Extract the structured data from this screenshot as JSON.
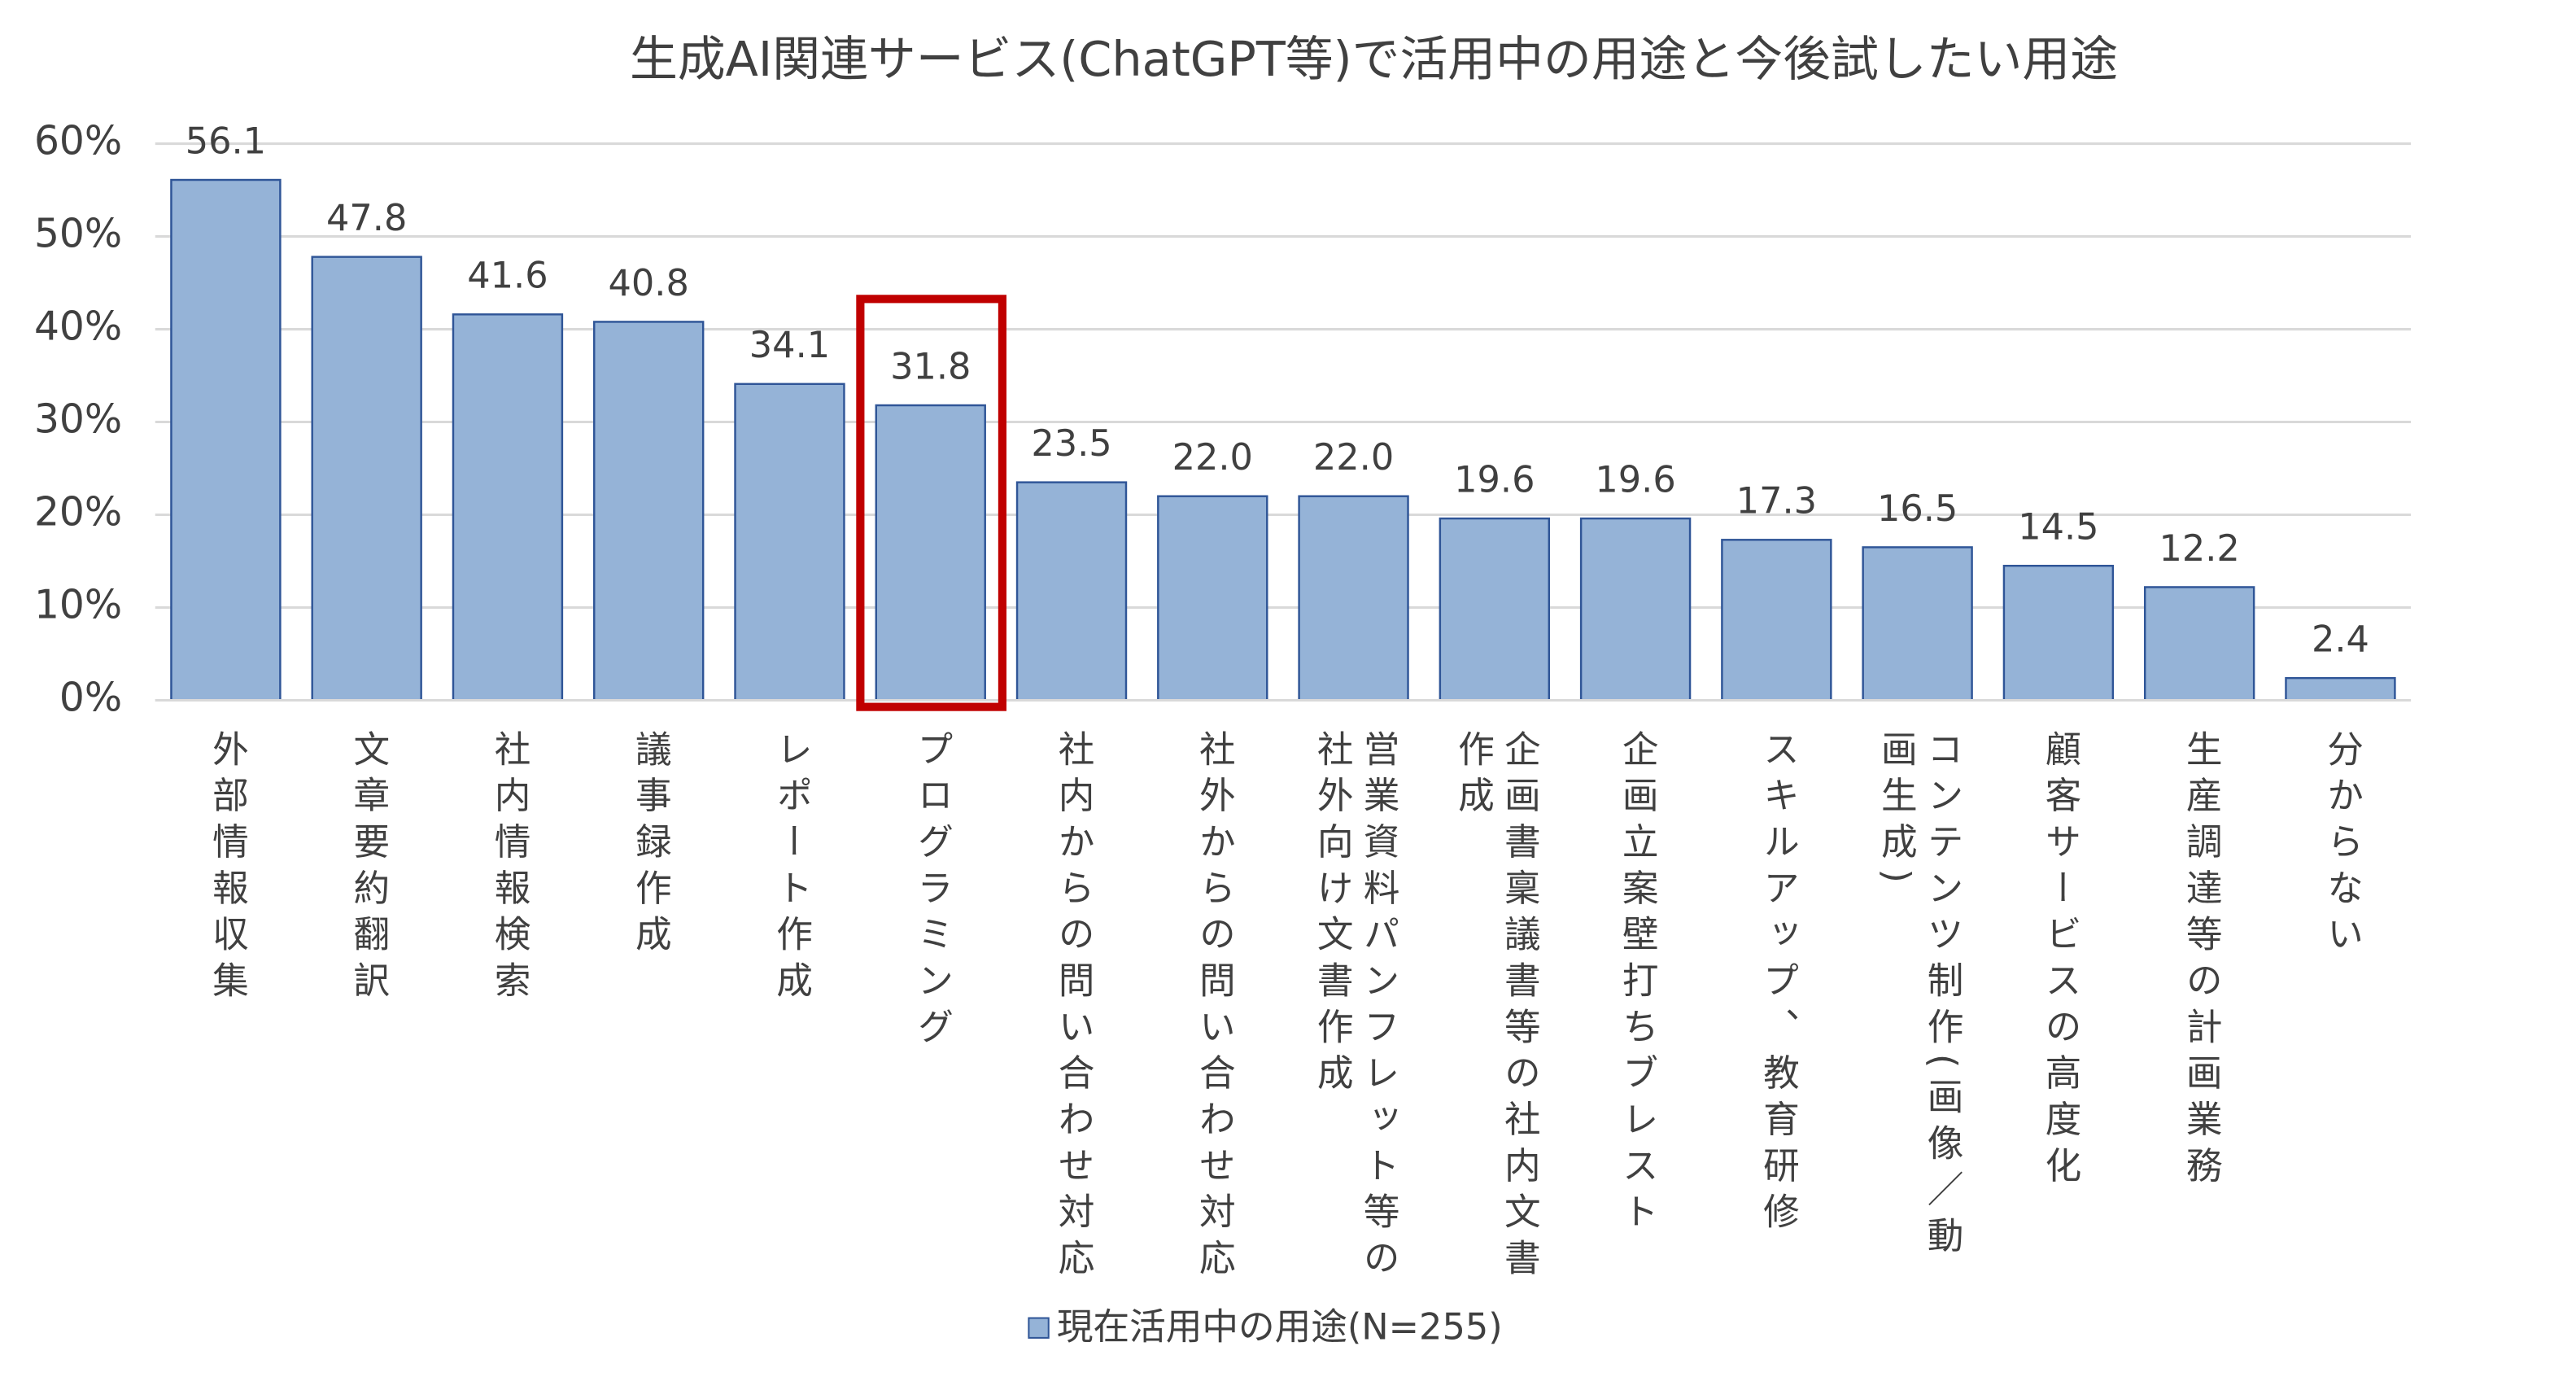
{
  "chart_data": {
    "type": "bar",
    "title": "生成AI関連サービス(ChatGPT等)で活用中の用途と今後試したい用途",
    "categories": [
      "外部情報収集",
      "文章要約翻訳",
      "社内情報検索",
      "議事録作成",
      "レポート作成",
      "プログラミング",
      "社内からの問い合わせ対応",
      "社外からの問い合わせ対応",
      "営業資料パンフレット等の社外向け文書作成",
      "企画書稟議書等の社内文書作成",
      "企画立案壁打ちブレスト",
      "スキルアップ、教育研修",
      "コンテンツ制作(画像／動画生成)",
      "顧客サービスの高度化",
      "生産調達等の計画業務",
      "分からない"
    ],
    "series": [
      {
        "name": "現在活用中の用途(N=255)",
        "color": "#95b3d7",
        "values": [
          56.1,
          47.8,
          41.6,
          40.8,
          34.1,
          31.8,
          23.5,
          22.0,
          22.0,
          19.6,
          19.6,
          17.3,
          16.5,
          14.5,
          12.2,
          2.4
        ],
        "value_labels": [
          "56.1",
          "47.8",
          "41.6",
          "40.8",
          "34.1",
          "31.8",
          "23.5",
          "22.0",
          "22.0",
          "19.6",
          "19.6",
          "17.3",
          "16.5",
          "14.5",
          "12.2",
          "2.4"
        ]
      }
    ],
    "ylim": [
      0,
      60
    ],
    "yticks": [
      {
        "value": 0,
        "label": "0%"
      },
      {
        "value": 10,
        "label": "10%"
      },
      {
        "value": 20,
        "label": "20%"
      },
      {
        "value": 30,
        "label": "30%"
      },
      {
        "value": 40,
        "label": "40%"
      },
      {
        "value": 50,
        "label": "50%"
      },
      {
        "value": 60,
        "label": "60%"
      }
    ],
    "grid": true,
    "legend": "bottom"
  }
}
